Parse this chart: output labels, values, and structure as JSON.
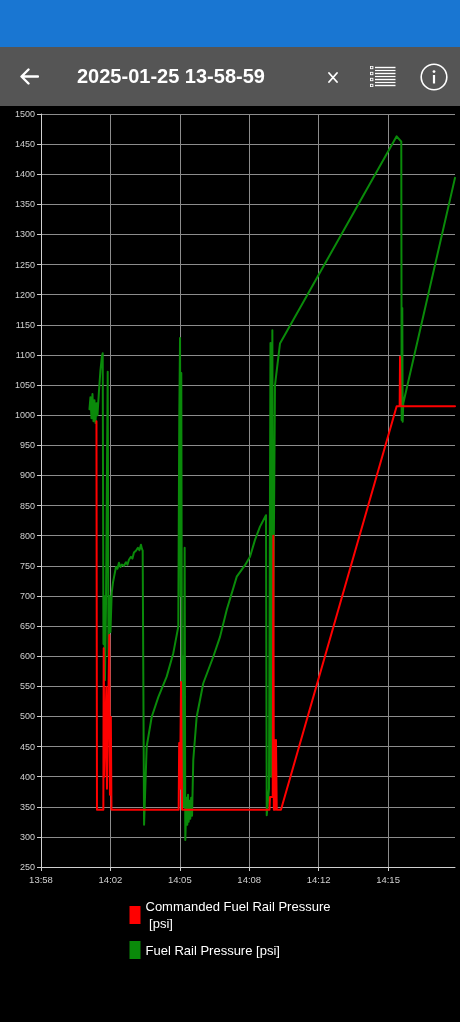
{
  "chart_data": {
    "type": "line",
    "title": "2025-01-25 13-58-59",
    "xlim": [
      13.9722,
      14.3036
    ],
    "xticks": [
      {
        "value": 13.9722,
        "label": "13:58"
      },
      {
        "value": 14.0278,
        "label": "14:02"
      },
      {
        "value": 14.0833,
        "label": "14:05"
      },
      {
        "value": 14.1389,
        "label": "14:08"
      },
      {
        "value": 14.1944,
        "label": "14:12"
      },
      {
        "value": 14.25,
        "label": "14:15"
      }
    ],
    "ylim": [
      250,
      1500
    ],
    "yticks": [
      250,
      300,
      350,
      400,
      450,
      500,
      550,
      600,
      650,
      700,
      750,
      800,
      850,
      900,
      950,
      1000,
      1050,
      1100,
      1150,
      1200,
      1250,
      1300,
      1350,
      1400,
      1450,
      1500
    ],
    "grid": true,
    "legend": "bottom",
    "marker": "none",
    "line_style": "solid",
    "series": [
      {
        "name": "Commanded Fuel Rail Pressure [psi]",
        "color": "#ff0000",
        "x": [
          14.0166,
          14.017,
          14.0221,
          14.0224,
          14.0229,
          14.0245,
          14.025,
          14.0269,
          14.0274,
          14.0281,
          14.0286,
          14.0824,
          14.0828,
          14.0835,
          14.0843,
          14.0851,
          14.1551,
          14.1555,
          14.1577,
          14.1582,
          14.1586,
          14.1591,
          14.1597,
          14.1603,
          14.1609,
          14.1643,
          14.2569,
          14.2593,
          14.2596,
          14.2601,
          14.3036
        ],
        "values": [
          990,
          345,
          345,
          613,
          400,
          549,
          380,
          635,
          370,
          499,
          345,
          345,
          456,
          380,
          557,
          345,
          345,
          366,
          366,
          800,
          345,
          461,
          345,
          461,
          345,
          345,
          1015,
          1015,
          1097,
          1015,
          1015
        ]
      },
      {
        "name": "Fuel Rail Pressure [psi]",
        "color": "#0a8a0a",
        "x": [
          14.011,
          14.0118,
          14.0126,
          14.0134,
          14.0142,
          14.015,
          14.0158,
          14.0166,
          14.0174,
          14.0186,
          14.0198,
          14.021,
          14.0216,
          14.0222,
          14.0228,
          14.0234,
          14.0242,
          14.0256,
          14.0262,
          14.027,
          14.0278,
          14.0288,
          14.0298,
          14.031,
          14.0322,
          14.0334,
          14.0346,
          14.0358,
          14.037,
          14.0386,
          14.0402,
          14.0414,
          14.0426,
          14.0442,
          14.0454,
          14.0466,
          14.0482,
          14.0498,
          14.051,
          14.0522,
          14.053,
          14.0536,
          14.0547,
          14.0568,
          14.0608,
          14.0661,
          14.0728,
          14.0781,
          14.0821,
          14.0829,
          14.0835,
          14.084,
          14.0845,
          14.0851,
          14.0856,
          14.0863,
          14.0872,
          14.0877,
          14.0887,
          14.0893,
          14.0899,
          14.0904,
          14.0911,
          14.0917,
          14.0924,
          14.0931,
          14.0941,
          14.0968,
          14.1021,
          14.1101,
          14.1155,
          14.1209,
          14.1289,
          14.1355,
          14.1395,
          14.1435,
          14.1475,
          14.1523,
          14.1529,
          14.1547,
          14.1559,
          14.1565,
          14.1574,
          14.1579,
          14.1595,
          14.1635,
          14.2569,
          14.2606,
          14.2609,
          14.2614,
          14.2617,
          14.2622,
          14.3036
        ],
        "values": [
          1010,
          1030,
          995,
          1035,
          990,
          1025,
          987,
          1020,
          1000,
          1040,
          1075,
          1098,
          1103,
          620,
          700,
          560,
          680,
          1072,
          600,
          700,
          640,
          705,
          722,
          735,
          748,
          745,
          755,
          748,
          752,
          750,
          756,
          752,
          760,
          765,
          762,
          772,
          775,
          780,
          776,
          785,
          778,
          775,
          320,
          450,
          499,
          532,
          566,
          605,
          649,
          1000,
          1128,
          700,
          1070,
          400,
          600,
          350,
          780,
          295,
          365,
          320,
          370,
          325,
          360,
          330,
          365,
          335,
          428,
          499,
          555,
          599,
          632,
          677,
          732,
          751,
          765,
          793,
          815,
          834,
          336,
          380,
          1120,
          400,
          1141,
          600,
          1050,
          1119,
          1463,
          1454,
          992,
          1178,
          989,
          1020,
          1394
        ]
      }
    ]
  }
}
